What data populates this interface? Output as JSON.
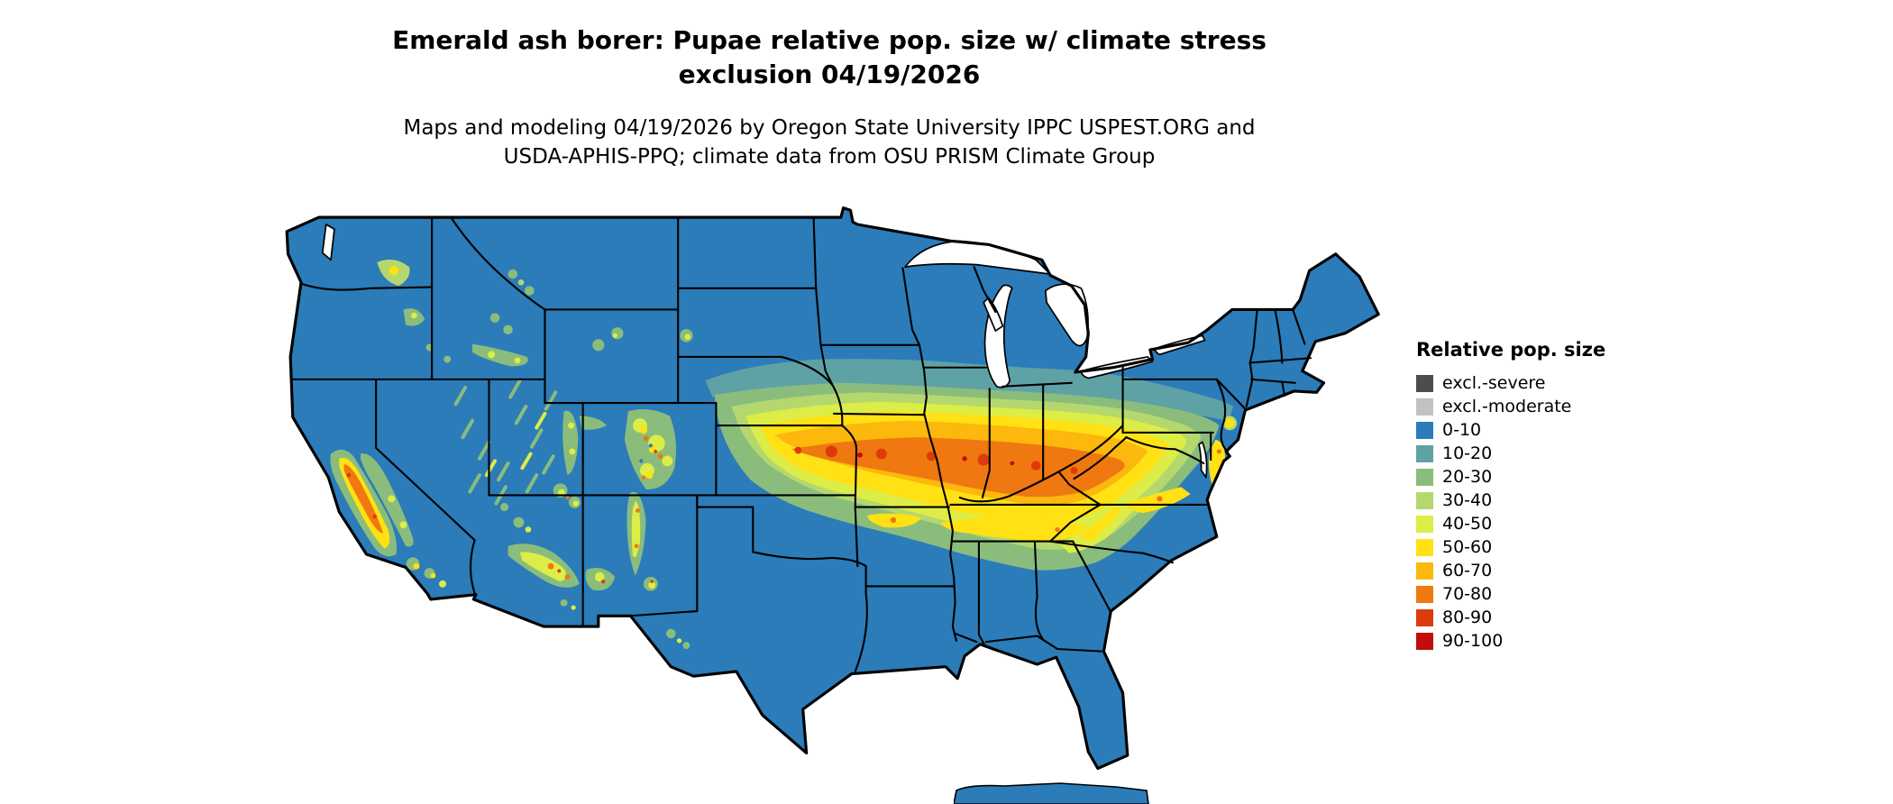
{
  "header": {
    "title_line1": "Emerald ash borer: Pupae relative pop. size w/ climate stress",
    "title_line2": "exclusion 04/19/2026",
    "subtitle_line1": "Maps and modeling 04/19/2026 by Oregon State University IPPC USPEST.ORG and",
    "subtitle_line2": "USDA-APHIS-PPQ; climate data from OSU PRISM Climate Group"
  },
  "map": {
    "region": "Continental United States",
    "base_color": "#2b7cb9",
    "water_color": "#ffffff",
    "border_color": "#000000"
  },
  "legend": {
    "title": "Relative pop. size",
    "items": [
      {
        "label": "excl.-severe",
        "color": "#4d4d4d"
      },
      {
        "label": "excl.-moderate",
        "color": "#c2c2c2"
      },
      {
        "label": "0-10",
        "color": "#2b7cb9"
      },
      {
        "label": "10-20",
        "color": "#5fa2a6"
      },
      {
        "label": "20-30",
        "color": "#8abd7c"
      },
      {
        "label": "30-40",
        "color": "#b4d86d"
      },
      {
        "label": "40-50",
        "color": "#dded47"
      },
      {
        "label": "50-60",
        "color": "#ffe114"
      },
      {
        "label": "60-70",
        "color": "#fcb80c"
      },
      {
        "label": "70-80",
        "color": "#f07810"
      },
      {
        "label": "80-90",
        "color": "#dd3b0b"
      },
      {
        "label": "90-100",
        "color": "#c30c0c"
      }
    ]
  }
}
